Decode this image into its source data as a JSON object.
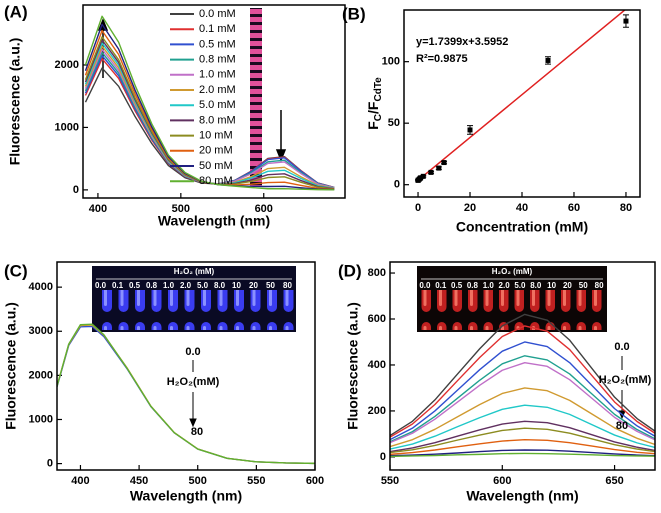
{
  "chart_data": [
    {
      "type": "line",
      "panel_label": "(A)",
      "xlabel": "Wavelength (nm)",
      "ylabel": "Fluorescence (a.u.)",
      "xlim": [
        382,
        698
      ],
      "ylim": [
        -130,
        2960
      ],
      "xticks": [
        400,
        500,
        600
      ],
      "yticks": [
        0,
        1000,
        2000
      ],
      "x": [
        385,
        405,
        425,
        445,
        465,
        485,
        505,
        525,
        545,
        565,
        585,
        605,
        625,
        645,
        665,
        685
      ],
      "legend": "upper right",
      "series": [
        {
          "name": "0.0 mM",
          "color": "#404040",
          "values": [
            1404,
            1950,
            1658,
            1170,
            741,
            390,
            195,
            109,
            93,
            151,
            300,
            504,
            532,
            308,
            112,
            39
          ]
        },
        {
          "name": "0.1 mM",
          "color": "#e03030",
          "values": [
            1512,
            2100,
            1785,
            1260,
            798,
            420,
            210,
            116,
            96,
            152,
            296,
            495,
            523,
            303,
            110,
            39
          ]
        },
        {
          "name": "0.5 mM",
          "color": "#3050d0",
          "values": [
            1548,
            2150,
            1828,
            1290,
            817,
            430,
            215,
            119,
            97,
            151,
            292,
            486,
            513,
            297,
            108,
            38
          ]
        },
        {
          "name": "0.8 mM",
          "color": "#20a090",
          "values": [
            1584,
            2200,
            1870,
            1320,
            836,
            440,
            220,
            120,
            96,
            144,
            272,
            450,
            475,
            275,
            100,
            35
          ]
        },
        {
          "name": "1.0 mM",
          "color": "#c070c8",
          "values": [
            1620,
            2250,
            1913,
            1350,
            855,
            450,
            225,
            122,
            96,
            139,
            258,
            423,
            447,
            259,
            94,
            33
          ]
        },
        {
          "name": "2.0 mM",
          "color": "#d09a30",
          "values": [
            1656,
            2300,
            1955,
            1380,
            874,
            460,
            230,
            123,
            92,
            122,
            213,
            342,
            361,
            209,
            76,
            27
          ]
        },
        {
          "name": "5.0 mM",
          "color": "#20c8c8",
          "values": [
            1692,
            2350,
            1998,
            1410,
            893,
            470,
            235,
            125,
            91,
            113,
            189,
            297,
            314,
            182,
            66,
            23
          ]
        },
        {
          "name": "8.0 mM",
          "color": "#603060",
          "values": [
            1728,
            2400,
            2040,
            1440,
            912,
            480,
            240,
            125,
            88,
            102,
            159,
            243,
            257,
            149,
            54,
            19
          ]
        },
        {
          "name": "10 mM",
          "color": "#8c8c20",
          "values": [
            1764,
            2450,
            2083,
            1470,
            931,
            490,
            245,
            127,
            87,
            93,
            135,
            198,
            209,
            121,
            44,
            15
          ]
        },
        {
          "name": "20 mM",
          "color": "#e06010",
          "values": [
            1836,
            2550,
            2168,
            1530,
            969,
            510,
            255,
            131,
            85,
            77,
            91,
            117,
            124,
            72,
            26,
            9
          ]
        },
        {
          "name": "50 mM",
          "color": "#202080",
          "values": [
            1908,
            2650,
            2253,
            1590,
            1007,
            530,
            265,
            134,
            84,
            65,
            57,
            54,
            57,
            33,
            12,
            4
          ]
        },
        {
          "name": "80 mM",
          "color": "#60b030",
          "values": [
            2002,
            2780,
            2363,
            1668,
            1056,
            556,
            278,
            139,
            84,
            60,
            38,
            18,
            19,
            11,
            4,
            1
          ]
        }
      ]
    },
    {
      "type": "scatter",
      "panel_label": "(B)",
      "xlabel": "Concentration (mM)",
      "ylabel": [
        "F",
        "C",
        "/F",
        "CdTe"
      ],
      "xlim": [
        -5.4,
        85.4
      ],
      "ylim": [
        -10,
        142
      ],
      "xticks": [
        0,
        20,
        40,
        60,
        80
      ],
      "yticks": [
        0,
        50,
        100
      ],
      "color": "#000000",
      "fit_color": "#e02020",
      "x": [
        0,
        0.1,
        0.5,
        0.8,
        1,
        2,
        5,
        8,
        10,
        20,
        50,
        80
      ],
      "values": [
        3.5,
        3.8,
        4.5,
        5.2,
        5.6,
        6.8,
        10,
        13.5,
        18,
        44.5,
        101,
        133
      ],
      "errors": [
        0.5,
        0.5,
        0.5,
        0.5,
        0.5,
        0.6,
        0.8,
        1,
        1,
        3.5,
        3,
        5
      ],
      "fit": {
        "label": "y=1.7399x+3.5952",
        "slope": 1.7399,
        "intercept": 3.5952
      },
      "r2_label": "R²=0.9875"
    },
    {
      "type": "line",
      "panel_label": "(C)",
      "xlabel": "Wavelength (nm)",
      "ylabel": "Fluorescence (a.u.)",
      "xlim": [
        380,
        600
      ],
      "ylim": [
        -145,
        4570
      ],
      "xticks": [
        400,
        450,
        500,
        550,
        600
      ],
      "yticks": [
        0,
        1000,
        2000,
        3000,
        4000
      ],
      "x": [
        380,
        390,
        400,
        410,
        420,
        440,
        460,
        480,
        500,
        525,
        550,
        575,
        600
      ],
      "series": [
        {
          "color": "#3050d0",
          "values": [
            1740,
            2680,
            3100,
            3110,
            2880,
            2140,
            1295,
            698,
            330,
            120,
            40,
            15,
            5
          ]
        },
        {
          "color": "#d09a30",
          "values": [
            1760,
            2700,
            3130,
            3140,
            2910,
            2160,
            1305,
            702,
            332,
            121,
            40,
            15,
            5
          ]
        },
        {
          "color": "#60b030",
          "values": [
            1750,
            2710,
            3150,
            3160,
            2920,
            2150,
            1300,
            700,
            330,
            120,
            40,
            15,
            5
          ]
        }
      ],
      "inset": {
        "title": "H₂O₂ (mM)",
        "labels": [
          "0.0",
          "0.1",
          "0.5",
          "0.8",
          "1.0",
          "2.0",
          "5.0",
          "8.0",
          "10",
          "20",
          "50",
          "80"
        ]
      },
      "annotations": [
        "0.0",
        "H₂O₂(mM)",
        "80"
      ]
    },
    {
      "type": "line",
      "panel_label": "(D)",
      "xlabel": "Wavelength (nm)",
      "ylabel": "Fluorescence (a.u.)",
      "xlim": [
        550,
        668
      ],
      "ylim": [
        -57,
        848
      ],
      "xticks": [
        550,
        600,
        650
      ],
      "yticks": [
        0,
        200,
        400,
        600,
        800
      ],
      "x": [
        550,
        560,
        570,
        580,
        590,
        600,
        610,
        620,
        630,
        640,
        650,
        660,
        668
      ],
      "series": [
        {
          "color": "#404040",
          "values": [
            93,
            155,
            248,
            360,
            471,
            570,
            620,
            595,
            508,
            384,
            260,
            167,
            112
          ]
        },
        {
          "color": "#e03030",
          "values": [
            86,
            143,
            228,
            331,
            433,
            524,
            570,
            547,
            467,
            353,
            239,
            154,
            103
          ]
        },
        {
          "color": "#3050d0",
          "values": [
            75,
            125,
            200,
            290,
            380,
            460,
            500,
            480,
            410,
            310,
            210,
            135,
            90
          ]
        },
        {
          "color": "#20a090",
          "values": [
            66,
            110,
            176,
            255,
            334,
            405,
            440,
            422,
            361,
            273,
            185,
            119,
            79
          ]
        },
        {
          "color": "#c070c8",
          "values": [
            62,
            103,
            164,
            238,
            312,
            377,
            410,
            394,
            336,
            254,
            172,
            111,
            74
          ]
        },
        {
          "color": "#d09a30",
          "values": [
            45,
            75,
            120,
            174,
            228,
            276,
            300,
            288,
            246,
            186,
            126,
            81,
            54
          ]
        },
        {
          "color": "#20c8c8",
          "values": [
            34,
            56,
            90,
            131,
            171,
            207,
            225,
            216,
            185,
            140,
            95,
            61,
            41
          ]
        },
        {
          "color": "#603060",
          "values": [
            23,
            39,
            62,
            90,
            118,
            143,
            155,
            149,
            127,
            96,
            65,
            42,
            28
          ]
        },
        {
          "color": "#8c8c20",
          "values": [
            19,
            31,
            50,
            73,
            95,
            115,
            125,
            120,
            103,
            78,
            53,
            34,
            23
          ]
        },
        {
          "color": "#e06010",
          "values": [
            11,
            19,
            30,
            44,
            57,
            69,
            75,
            72,
            62,
            47,
            32,
            20,
            14
          ]
        },
        {
          "color": "#202080",
          "values": [
            5,
            8,
            12,
            17,
            23,
            28,
            30,
            29,
            25,
            19,
            13,
            8,
            5
          ]
        },
        {
          "color": "#60b030",
          "values": [
            2,
            4,
            6,
            9,
            11,
            14,
            15,
            14,
            12,
            9,
            6,
            4,
            3
          ]
        }
      ],
      "inset": {
        "title": "H₂O₂ (mM)",
        "labels": [
          "0.0",
          "0.1",
          "0.5",
          "0.8",
          "1.0",
          "2.0",
          "5.0",
          "8.0",
          "10",
          "20",
          "50",
          "80"
        ]
      },
      "annotations": [
        "0.0",
        "H₂O₂(mM)",
        "80"
      ]
    }
  ]
}
